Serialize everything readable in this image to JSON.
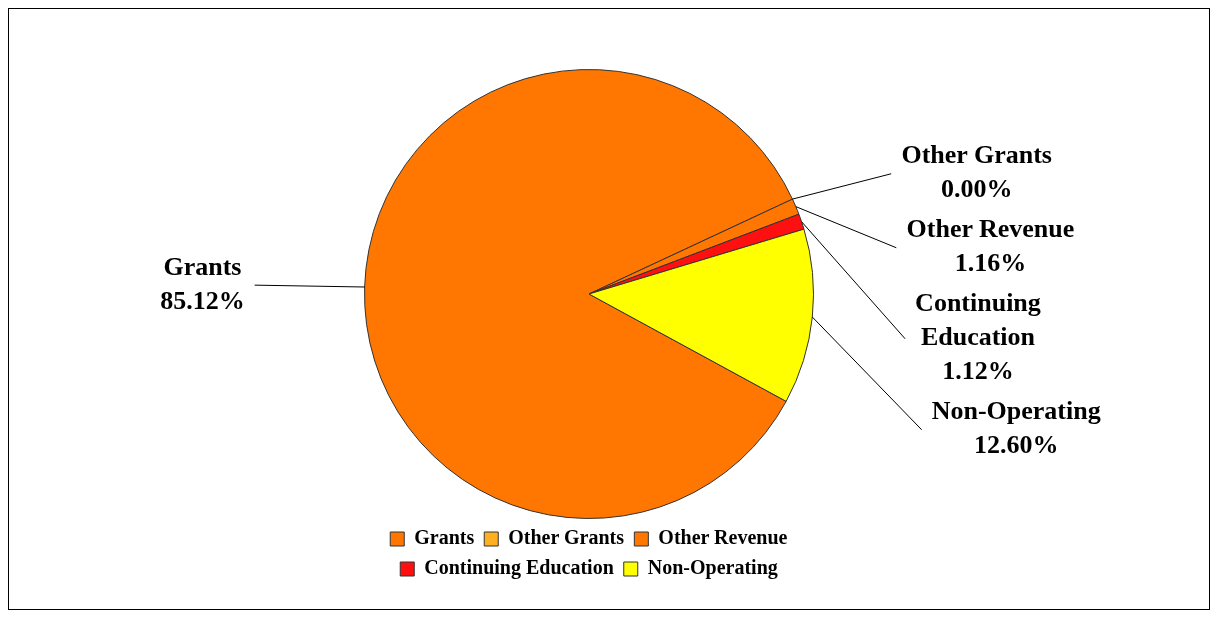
{
  "chart_data": {
    "type": "pie",
    "categories": [
      "Grants",
      "Other Grants",
      "Other Revenue",
      "Continuing Education",
      "Non-Operating"
    ],
    "values": [
      85.12,
      0.0,
      1.16,
      1.12,
      12.6
    ],
    "value_labels": [
      "85.12%",
      "0.00%",
      "1.16%",
      "1.12%",
      "12.60%"
    ],
    "colors": [
      "#ff7700",
      "#ffb020",
      "#ff7700",
      "#ff1010",
      "#ffff00"
    ],
    "legend": "bottom"
  }
}
